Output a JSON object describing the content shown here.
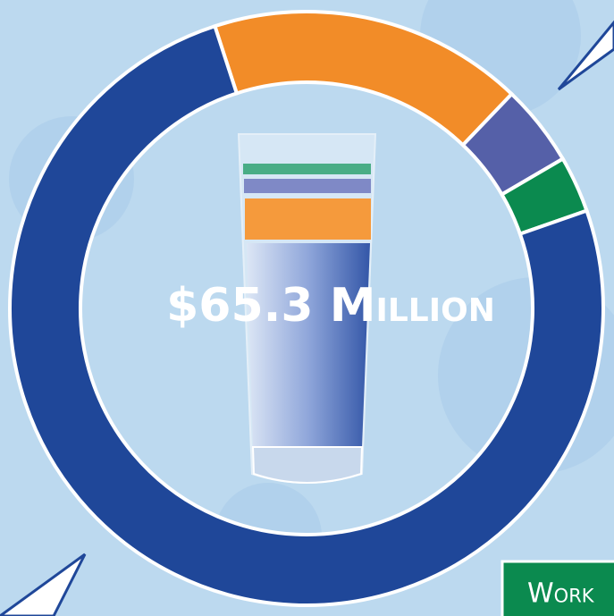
{
  "chart_data": {
    "type": "donut",
    "center_label": "$65.3 Million",
    "values": [
      11.2,
      2.9,
      2.0,
      49.2
    ],
    "colors": [
      "#f28c28",
      "#5560a8",
      "#0b8a4f",
      "#1f4799"
    ],
    "annotation": "Work"
  }
}
